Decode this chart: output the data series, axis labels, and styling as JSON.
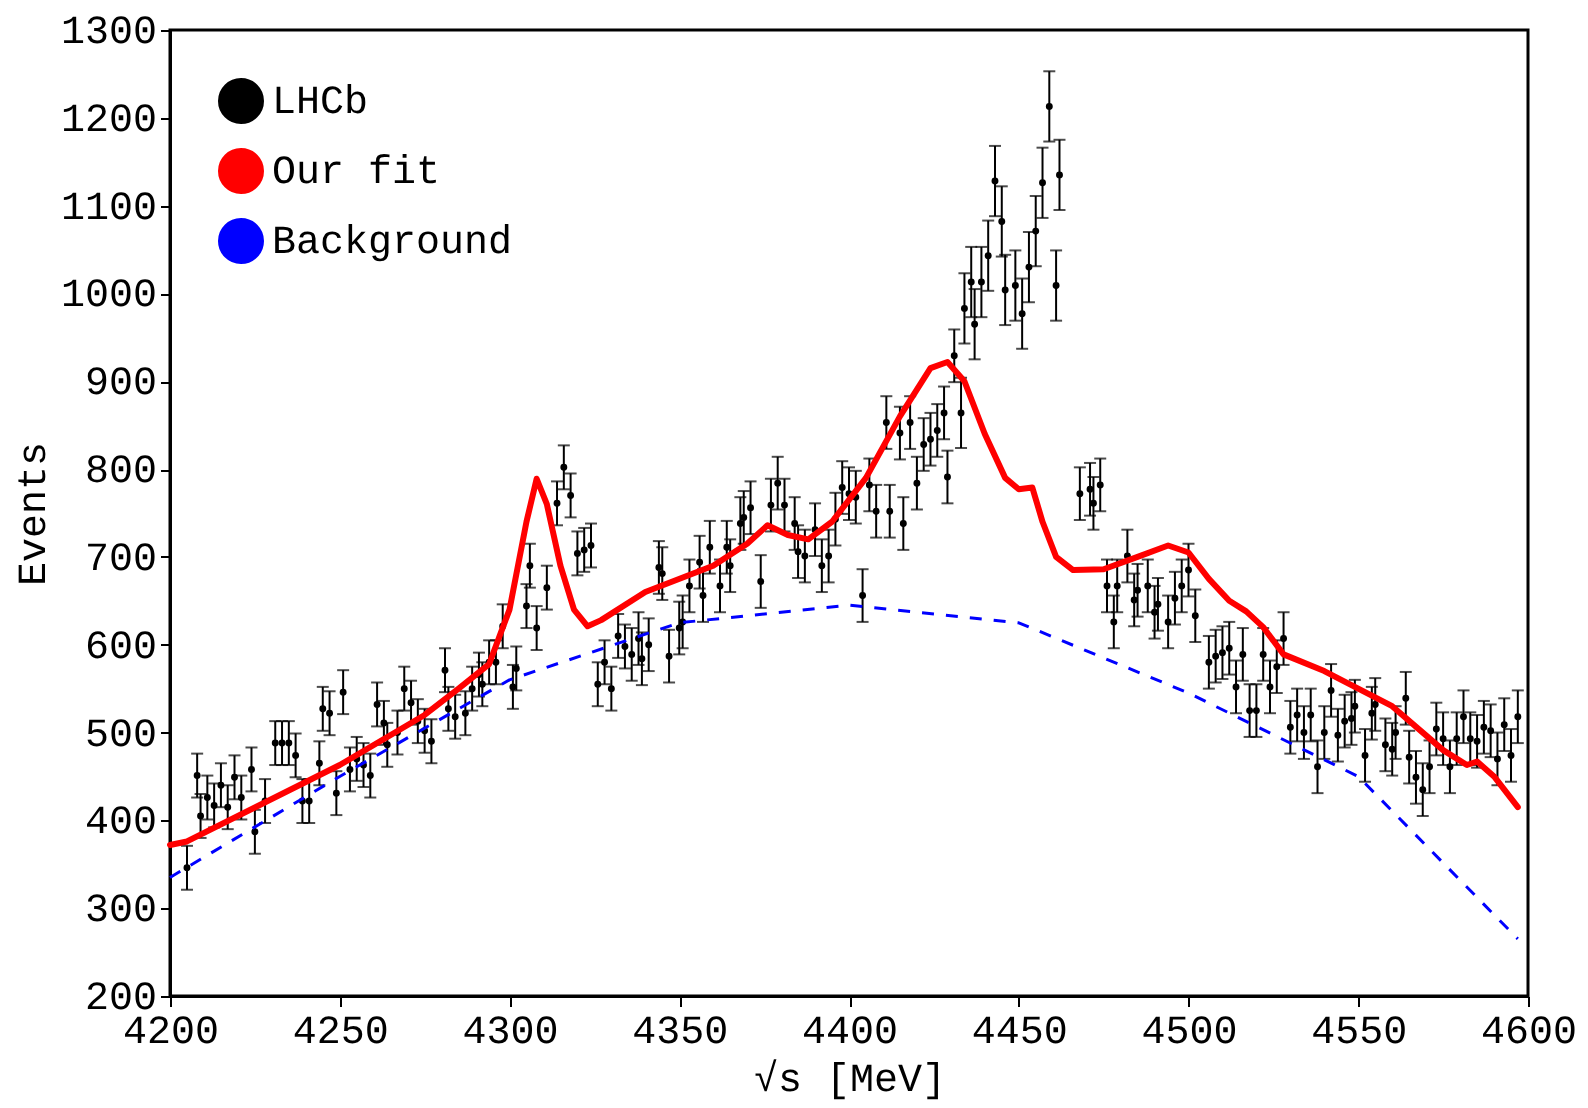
{
  "chart_data": {
    "type": "scatter",
    "xlabel": "√s [MeV]",
    "ylabel": "Events",
    "xlim": [
      4200,
      4600
    ],
    "xticks": [
      4200,
      4250,
      4300,
      4350,
      4400,
      4450,
      4500,
      4550,
      4600
    ],
    "ylim": [
      200,
      1300
    ],
    "yticks": [
      200,
      300,
      400,
      500,
      600,
      700,
      800,
      900,
      1000,
      1100,
      1200,
      1300
    ],
    "grid": false,
    "legend": "top left",
    "series": [
      {
        "name": "LHCb",
        "color": "#000000",
        "marker": "circle",
        "x": [
          4205,
          4208,
          4209,
          4211,
          4213,
          4215,
          4217,
          4219,
          4221,
          4224,
          4225,
          4228,
          4231,
          4233,
          4235,
          4237,
          4239,
          4241,
          4244,
          4245,
          4247,
          4249,
          4251,
          4253,
          4255,
          4257,
          4259,
          4261,
          4263,
          4264,
          4267,
          4269,
          4271,
          4273,
          4275,
          4277,
          4281,
          4282,
          4284,
          4287,
          4289,
          4291,
          4292,
          4294,
          4296,
          4298,
          4301,
          4302,
          4305,
          4306,
          4308,
          4311,
          4314,
          4316,
          4318,
          4320,
          4322,
          4324,
          4326,
          4328,
          4330,
          4332,
          4334,
          4336,
          4338,
          4339,
          4341,
          4344,
          4345,
          4347,
          4350,
          4351,
          4353,
          4356,
          4357,
          4359,
          4362,
          4364,
          4365,
          4368,
          4369,
          4371,
          4374,
          4377,
          4379,
          4381,
          4384,
          4385,
          4387,
          4390,
          4392,
          4394,
          4396,
          4398,
          4400,
          4402,
          4404,
          4406,
          4408,
          4411,
          4412,
          4415,
          4416,
          4418,
          4420,
          4422,
          4424,
          4426,
          4428,
          4429,
          4431,
          4433,
          4434,
          4436,
          4437,
          4439,
          4441,
          4443,
          4445,
          4446,
          4449,
          4451,
          4453,
          4455,
          4457,
          4459,
          4461,
          4462,
          4468,
          4471,
          4472,
          4474,
          4476,
          4478,
          4479,
          4482,
          4484,
          4485,
          4488,
          4490,
          4491,
          4494,
          4496,
          4498,
          4500,
          4502,
          4506,
          4508,
          4510,
          4512,
          4514,
          4516,
          4518,
          4520,
          4522,
          4524,
          4526,
          4528,
          4530,
          4532,
          4534,
          4536,
          4538,
          4540,
          4542,
          4544,
          4546,
          4548,
          4549,
          4552,
          4554,
          4555,
          4558,
          4560,
          4561,
          4564,
          4565,
          4567,
          4569,
          4571,
          4573,
          4575,
          4577,
          4579,
          4581,
          4583,
          4585,
          4587,
          4589,
          4591,
          4593,
          4595,
          4597
        ],
        "values": [
          346,
          451,
          405,
          426,
          417,
          440,
          415,
          449,
          426,
          458,
          387,
          422,
          488,
          488,
          488,
          474,
          422,
          422,
          465,
          527,
          522,
          431,
          546,
          458,
          470,
          463,
          451,
          532,
          511,
          486,
          500,
          550,
          534,
          513,
          502,
          490,
          571,
          527,
          518,
          522,
          550,
          566,
          555,
          580,
          580,
          621,
          552,
          573,
          644,
          690,
          619,
          665,
          761,
          802,
          770,
          704,
          708,
          713,
          555,
          580,
          550,
          610,
          598,
          589,
          607,
          584,
          600,
          688,
          681,
          587,
          619,
          626,
          667,
          694,
          656,
          711,
          667,
          711,
          690,
          738,
          745,
          756,
          672,
          759,
          784,
          759,
          738,
          706,
          701,
          731,
          690,
          701,
          743,
          779,
          772,
          768,
          656,
          782,
          752,
          853,
          752,
          841,
          738,
          853,
          784,
          828,
          834,
          844,
          864,
          791,
          929,
          864,
          983,
          1013,
          965,
          1013,
          1043,
          1128,
          1082,
          1004,
          1009,
          977,
          1030,
          1071,
          1126,
          1213,
          1009,
          1135,
          772,
          777,
          761,
          782,
          667,
          626,
          667,
          701,
          651,
          662,
          667,
          637,
          646,
          626,
          653,
          667,
          685,
          633,
          580,
          587,
          591,
          596,
          552,
          589,
          525,
          525,
          589,
          552,
          575,
          607,
          506,
          520,
          500,
          520,
          461,
          500,
          548,
          497,
          513,
          516,
          530,
          474,
          522,
          532,
          486,
          481,
          500,
          539,
          472,
          449,
          435,
          461,
          504,
          493,
          461,
          493,
          518,
          493,
          490,
          506,
          502,
          470,
          509,
          474,
          518
        ],
        "errors": [
          25,
          25,
          25,
          25,
          25,
          25,
          25,
          25,
          25,
          25,
          25,
          25,
          25,
          25,
          25,
          25,
          25,
          25,
          25,
          25,
          25,
          25,
          25,
          25,
          25,
          25,
          25,
          25,
          25,
          25,
          25,
          25,
          25,
          25,
          25,
          25,
          25,
          25,
          25,
          25,
          25,
          25,
          25,
          25,
          25,
          25,
          25,
          25,
          25,
          25,
          25,
          25,
          25,
          25,
          25,
          25,
          25,
          25,
          25,
          25,
          25,
          25,
          25,
          30,
          30,
          30,
          30,
          30,
          30,
          30,
          30,
          30,
          30,
          30,
          30,
          30,
          30,
          30,
          30,
          30,
          30,
          30,
          30,
          30,
          30,
          30,
          30,
          30,
          30,
          30,
          30,
          30,
          30,
          30,
          30,
          30,
          30,
          30,
          30,
          30,
          30,
          30,
          30,
          30,
          30,
          30,
          30,
          30,
          30,
          30,
          30,
          40,
          40,
          40,
          40,
          40,
          40,
          40,
          40,
          40,
          40,
          40,
          40,
          40,
          40,
          40,
          40,
          40,
          30,
          30,
          30,
          30,
          30,
          30,
          30,
          30,
          30,
          30,
          30,
          30,
          30,
          30,
          30,
          30,
          30,
          30,
          30,
          30,
          30,
          30,
          30,
          30,
          30,
          30,
          30,
          30,
          30,
          30,
          30,
          30,
          30,
          30,
          30,
          30,
          30,
          30,
          30,
          30,
          30,
          30,
          30,
          30,
          30,
          30,
          30,
          30,
          30,
          30,
          30,
          30,
          30,
          30,
          30,
          30,
          30,
          30,
          30,
          30,
          30,
          30,
          30,
          30,
          30
        ]
      },
      {
        "name": "Our fit",
        "type": "line",
        "color": "#ff0000",
        "line_style": "solid",
        "x": [
          4200,
          4205,
          4250,
          4275,
          4285,
          4294,
          4300,
          4305,
          4308,
          4311,
          4315,
          4319,
          4323,
          4327,
          4340,
          4360,
          4370,
          4376,
          4382,
          4388,
          4395,
          4405,
          4415,
          4424,
          4429,
          4434,
          4440,
          4446,
          4450,
          4454,
          4457,
          4461,
          4466,
          4475,
          4485,
          4494,
          4500,
          4506,
          4512,
          4517,
          4522,
          4528,
          4540,
          4560,
          4575,
          4582,
          4585,
          4590,
          4597
        ],
        "values": [
          372,
          376,
          463,
          520,
          550,
          578,
          640,
          740,
          789,
          760,
          690,
          640,
          621,
          628,
          660,
          690,
          715,
          736,
          725,
          720,
          740,
          790,
          860,
          915,
          922,
          900,
          840,
          790,
          777,
          779,
          740,
          700,
          685,
          686,
          700,
          713,
          705,
          675,
          650,
          638,
          620,
          589,
          570,
          530,
          480,
          463,
          467,
          450,
          415
        ]
      },
      {
        "name": "Background",
        "type": "line",
        "color": "#0000ff",
        "line_style": "dashed",
        "x": [
          4200,
          4250,
          4300,
          4350,
          4400,
          4450,
          4500,
          4550,
          4597
        ],
        "values": [
          335,
          450,
          560,
          625,
          645,
          625,
          545,
          450,
          265
        ]
      }
    ]
  }
}
